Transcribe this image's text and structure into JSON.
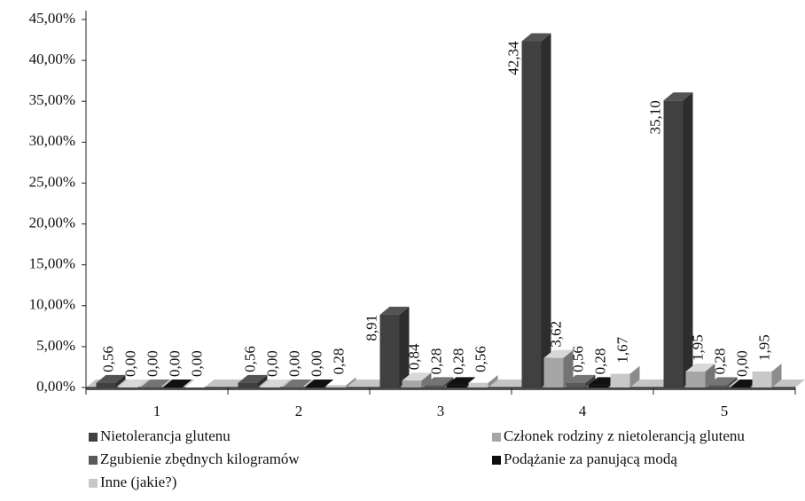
{
  "chart_data": {
    "type": "bar3d",
    "categories": [
      "1",
      "2",
      "3",
      "4",
      "5"
    ],
    "ylim": [
      0,
      45
    ],
    "yticks": [
      {
        "value": 0,
        "label": "0,00%"
      },
      {
        "value": 5,
        "label": "5,00%"
      },
      {
        "value": 10,
        "label": "10,00%"
      },
      {
        "value": 15,
        "label": "15,00%"
      },
      {
        "value": 20,
        "label": "20,00%"
      },
      {
        "value": 25,
        "label": "25,00%"
      },
      {
        "value": 30,
        "label": "30,00%"
      },
      {
        "value": 35,
        "label": "35,00%"
      },
      {
        "value": 40,
        "label": "40,00%"
      },
      {
        "value": 45,
        "label": "45,00%"
      }
    ],
    "legend": "bottom",
    "series": [
      {
        "name": "Nietolerancja glutenu",
        "color": "#404040",
        "values": [
          0.56,
          0.56,
          8.91,
          42.34,
          35.1
        ],
        "value_labels": [
          "0,56",
          "0,56",
          "8,91",
          "42,34",
          "35,10"
        ]
      },
      {
        "name": "Członek rodziny z nietolerancją glutenu",
        "color": "#a6a6a6",
        "values": [
          0.0,
          0.0,
          0.84,
          3.62,
          1.95
        ],
        "value_labels": [
          "0,00",
          "0,00",
          "0,84",
          "3,62",
          "1,95"
        ]
      },
      {
        "name": "Zgubienie zbędnych kilogramów",
        "color": "#595959",
        "values": [
          0.0,
          0.0,
          0.28,
          0.56,
          0.28
        ],
        "value_labels": [
          "0,00",
          "0,00",
          "0,28",
          "0,56",
          "0,28"
        ]
      },
      {
        "name": "Podążanie za panującą modą",
        "color": "#0d0d0d",
        "values": [
          0.0,
          0.0,
          0.28,
          0.28,
          0.0
        ],
        "value_labels": [
          "0,00",
          "0,00",
          "0,28",
          "0,28",
          "0,00"
        ]
      },
      {
        "name": "Inne (jakie?)",
        "color": "#c8c8c8",
        "values": [
          0.0,
          0.28,
          0.56,
          1.67,
          1.95
        ],
        "value_labels": [
          "0,00",
          "0,28",
          "0,56",
          "1,67",
          "1,95"
        ]
      }
    ]
  }
}
